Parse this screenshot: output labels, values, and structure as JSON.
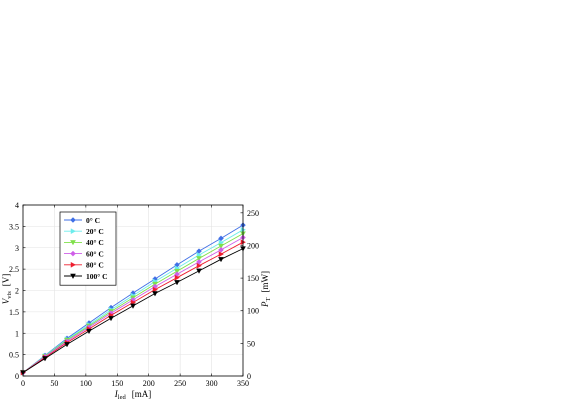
{
  "chart_data": {
    "type": "line",
    "x": [
      0,
      35,
      70,
      105,
      140,
      175,
      210,
      245,
      280,
      315,
      350
    ],
    "series": [
      {
        "name": "0",
        "color": "#3f6fe6",
        "marker": "diamond",
        "values": [
          0.08,
          0.48,
          0.88,
          1.24,
          1.6,
          1.94,
          2.27,
          2.6,
          2.92,
          3.22,
          3.53
        ]
      },
      {
        "name": "20",
        "color": "#6cecec",
        "marker": "triangle-right",
        "values": [
          0.08,
          0.47,
          0.86,
          1.2,
          1.55,
          1.88,
          2.21,
          2.52,
          2.83,
          3.12,
          3.42
        ]
      },
      {
        "name": "40",
        "color": "#7fe04a",
        "marker": "triangle-down",
        "values": [
          0.08,
          0.46,
          0.84,
          1.17,
          1.51,
          1.83,
          2.15,
          2.45,
          2.75,
          3.04,
          3.33
        ]
      },
      {
        "name": "60",
        "color": "#cf5ee8",
        "marker": "diamond",
        "values": [
          0.08,
          0.45,
          0.81,
          1.14,
          1.47,
          1.78,
          2.09,
          2.38,
          2.67,
          2.95,
          3.24
        ]
      },
      {
        "name": "80",
        "color": "#ee1d2e",
        "marker": "triangle-right",
        "values": [
          0.08,
          0.43,
          0.78,
          1.1,
          1.42,
          1.72,
          2.02,
          2.3,
          2.58,
          2.85,
          3.13
        ]
      },
      {
        "name": "100",
        "color": "#000000",
        "marker": "triangle-down",
        "values": [
          0.08,
          0.41,
          0.74,
          1.05,
          1.35,
          1.64,
          1.93,
          2.19,
          2.46,
          2.73,
          2.98
        ]
      }
    ],
    "legend_suffix": "° C",
    "xlim": [
      0,
      350
    ],
    "ylim": [
      0,
      4
    ],
    "y2lim": [
      0,
      262
    ],
    "xticks": [
      0,
      50,
      100,
      150,
      200,
      250,
      300,
      350
    ],
    "yticks": [
      0,
      0.5,
      1,
      1.5,
      2,
      2.5,
      3,
      3.5,
      4
    ],
    "y2ticks": [
      0,
      50,
      100,
      150,
      200,
      250
    ],
    "xlabel_main": "I",
    "xlabel_sub": "led",
    "xlabel_unit": "[mA]",
    "ylabel_main": "V",
    "ylabel_sub": "vis",
    "ylabel_unit": "[V]",
    "y2label_main": "P",
    "y2label_sub": "T",
    "y2label_unit": "[mW]",
    "grid": true,
    "legend_position": "top-left"
  }
}
